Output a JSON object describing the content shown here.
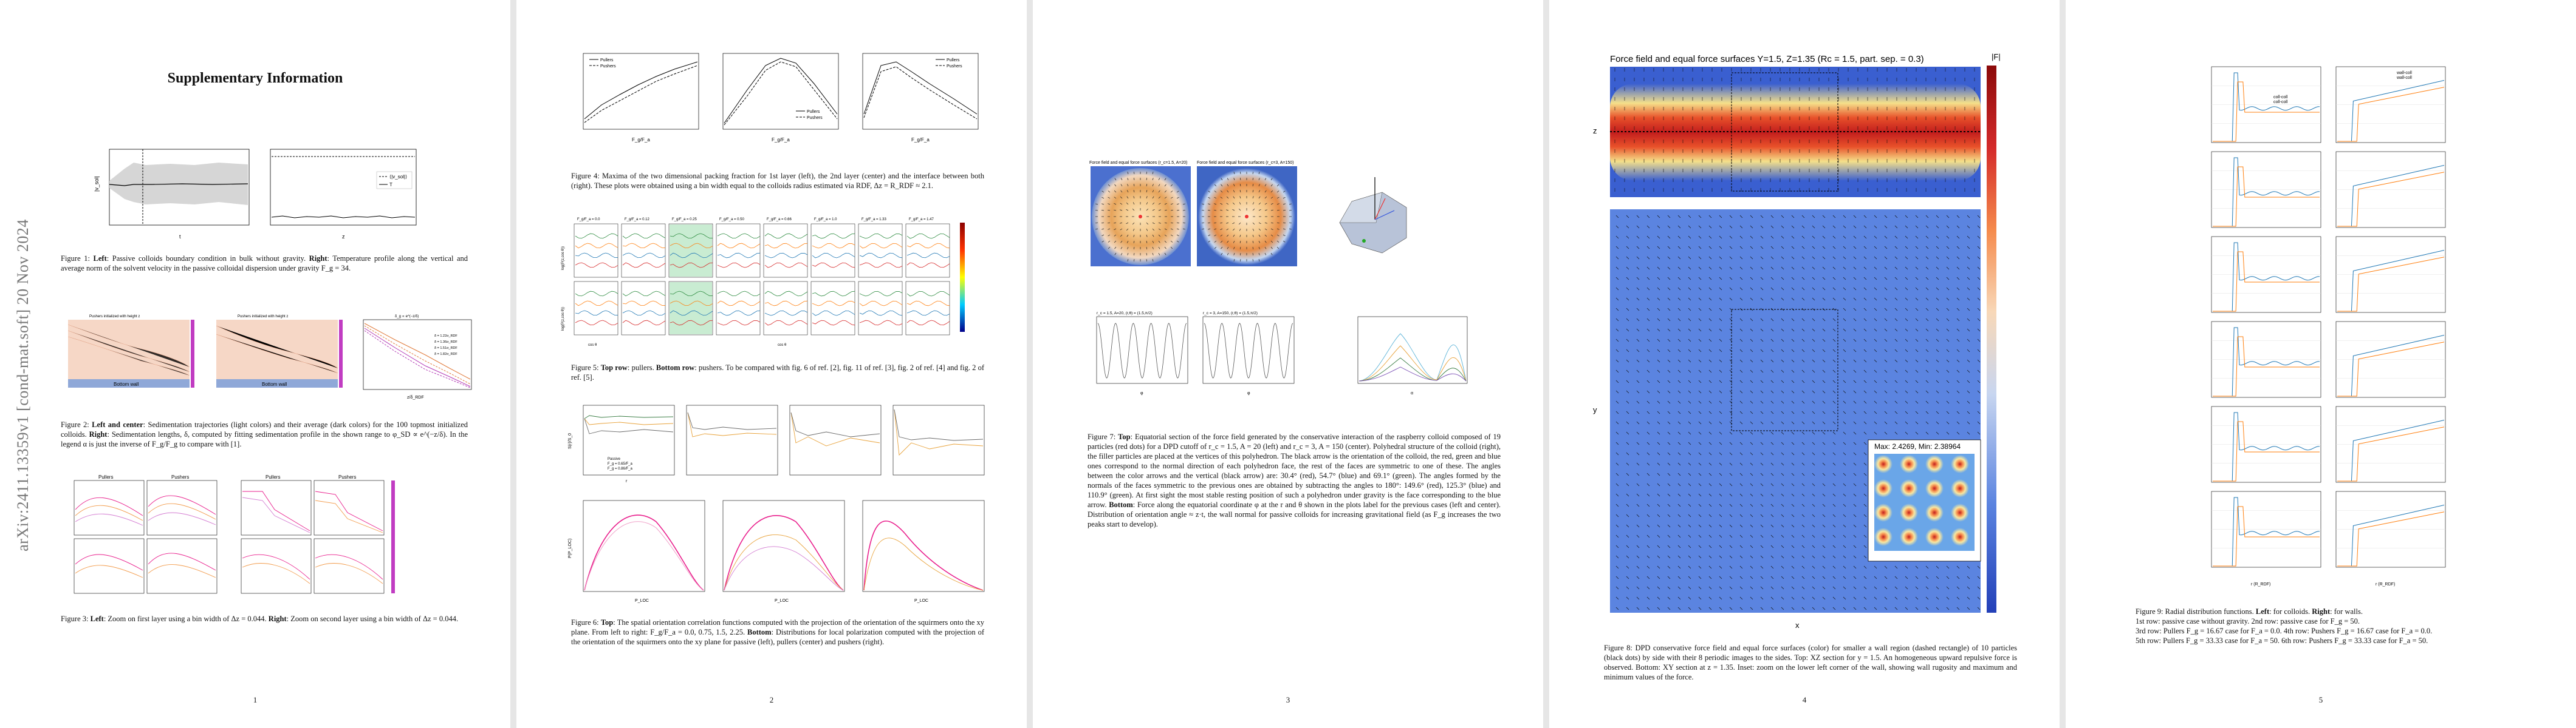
{
  "document": {
    "arxiv_id": "arXiv:2411.13359v1  [cond-mat.soft]  20 Nov 2024",
    "title": "Supplementary Information"
  },
  "pages": [
    {
      "number": "1"
    },
    {
      "number": "2"
    },
    {
      "number": "3"
    },
    {
      "number": "4"
    },
    {
      "number": "5"
    }
  ],
  "captions": {
    "fig1": {
      "label": "Figure 1:",
      "text_a": "Left",
      "text_b": ": Passive colloids boundary condition in bulk without gravity. ",
      "text_c": "Right",
      "text_d": ": Temperature profile along the vertical and average norm of the solvent velocity in the passive colloidal dispersion under gravity F_g = 34."
    },
    "fig2": {
      "label": "Figure 2:",
      "text_a": "Left and center",
      "text_b": ": Sedimentation trajectories (light colors) and their average (dark colors) for the 100 topmost initialized colloids. ",
      "text_c": "Right",
      "text_d": ": Sedimentation lengths, δ, computed by fitting sedimentation profile in the shown range to φ_SD ∝ e^(−z/δ). In the legend α is just the inverse of F_g/F_g to compare with [1]."
    },
    "fig3": {
      "label": "Figure 3:",
      "text_a": "Left",
      "text_b": ": Zoom on first layer using a bin width of Δz = 0.044. ",
      "text_c": "Right",
      "text_d": ": Zoom on second layer using a bin width of Δz = 0.044."
    },
    "fig4": {
      "label": "Figure 4:",
      "text_b": "Maxima of the two dimensional packing fraction for 1st layer (left), the 2nd layer (center) and the interface between both (right). These plots were obtained using a bin width equal to the colloids radius estimated via RDF, Δz = R_RDF ≈ 2.1."
    },
    "fig5": {
      "label": "Figure 5:",
      "text_a": "Top row",
      "text_b": ": pullers. ",
      "text_c": "Bottom row",
      "text_d": ": pushers. To be compared with fig. 6 of ref. [2], fig. 11 of ref. [3], fig. 2 of ref. [4] and fig. 2 of ref. [5]."
    },
    "fig6": {
      "label": "Figure 6:",
      "text_a": "Top",
      "text_b": ": The spatial orientation correlation functions computed with the projection of the orientation of the squirmers onto the xy plane. From left to right: F_g/F_a = 0.0, 0.75, 1.5, 2.25. ",
      "text_c": "Bottom",
      "text_d": ": Distributions for local polarization computed with the projection of the orientation of the squirmers onto the xy plane for passive (left), pullers (center) and pushers (right)."
    },
    "fig7": {
      "label": "Figure 7:",
      "text_a": "Top",
      "text_b": ": Equatorial section of the force field generated by the conservative interaction of the raspberry colloid composed of 19 particles (red dots) for a DPD cutoff of r_c = 1.5, A = 20 (left) and r_c = 3, A = 150 (center). Polyhedral structure of the colloid (right), the filler particles are placed at the vertices of this polyhedron. The black arrow is the orientation of the colloid, the red, green and blue ones correspond to the normal direction of each polyhedron face, the rest of the faces are symmetric to one of these. The angles between the color arrows and the vertical (black arrow) are: 30.4° (red), 54.7° (blue) and 69.1° (green). The angles formed by the normals of the faces symmetric to the previous ones are obtained by subtracting the angles to 180°: 149.6° (red), 125.3° (blue) and 110.9° (green). At first sight the most stable resting position of such a polyhedron under gravity is the face corresponding to the blue arrow. ",
      "text_c": "Bottom",
      "text_d": ": Force along the equatorial coordinate φ at the r and θ shown in the plots label for the previous cases (left and center). Distribution of orientation angle ≈ z·t, the wall normal for passive colloids for increasing gravitational field (as F_g increases the two peaks start to develop)."
    },
    "fig8": {
      "label": "Figure 8:",
      "text_b": "DPD conservative force field and equal force surfaces (color) for smaller a wall region (dashed rectangle) of 10 particles (black dots) by side with their 8 periodic images to the sides. Top: XZ section for y = 1.5. An homogeneous upward repulsive force is observed. Bottom: XY section at z = 1.35. Inset: zoom on the lower left corner of the wall, showing wall rugosity and maximum and minimum values of the force."
    },
    "fig9": {
      "label": "Figure 9:",
      "text_b": "Radial distribution functions. ",
      "text_a": "Left",
      "text_c": ": for colloids. ",
      "text_e": "Right",
      "text_d": ": for walls.",
      "rows": [
        "1st row: passive case without gravity. 2nd row: passive case for F_g = 50.",
        "3rd row: Pullers F_g = 16.67 case for F_a = 0.0. 4th row: Pushers F_g = 16.67 case for F_a = 0.0.",
        "5th row: Pullers F_g = 33.33 case for F_a = 50. 6th row: Pushers F_g = 33.33 case for F_a = 50."
      ]
    }
  },
  "figure_text": {
    "fig1_left": {
      "ylabel": "|v_sol|",
      "xlabel": "t"
    },
    "fig1_right": {
      "legend1": "⟨|v_sol|⟩",
      "legend2": "T",
      "xlabel": "z"
    },
    "fig2_left": {
      "title": "Pushers initialized with height z",
      "xlabel": "Bottom wall"
    },
    "fig2_center": {
      "title": "Pushers initialized with height z",
      "xlabel": "Bottom wall"
    },
    "fig2_right": {
      "title": "δ_g ∝ e^(−z/δ)",
      "xlabel": "z/δ_RDF",
      "leg": [
        "δ = 1.22σ_RDF",
        "δ = 1.36σ_RDF",
        "δ = 1.51σ_RDF",
        "δ = 1.82σ_RDF"
      ]
    },
    "fig3": {
      "titles": [
        "Pullers",
        "Pushers",
        "Pullers",
        "Pushers"
      ]
    },
    "fig4": {
      "leg1": "Pullers",
      "leg2": "Pushers",
      "xlabel": "F_g/F_a",
      "ylabels": [
        "φ_2D (1st layer)",
        "φ_2D (2nd layer)",
        "φ_2D (interface)"
      ]
    },
    "fig5": {
      "titles": [
        "F_g/F_a = 0.0",
        "F_g/F_a = 0.12",
        "F_g/F_a = 0.25",
        "F_g/F_a = 0.50",
        "F_g/F_a = 0.66",
        "F_g/F_a = 1.0",
        "F_g/F_a = 1.33",
        "F_g/F_a = 1.47"
      ],
      "xlabel": "cos θ",
      "ylabel_top": "log(P(z,cos θ))",
      "ylabel_bottom": "log(P(z,cos θ))"
    },
    "fig6": {
      "legend": [
        "Passive",
        "F_g = 0.65/F_a",
        "F_g = 0.86/F_a"
      ],
      "xlabel_top": "r",
      "xlabel_bottom": "P_LOC",
      "ylabel_top": "S(r)/S_0",
      "ylabel_bottom": "P(P_LOC)"
    },
    "fig7": {
      "title_left": "Force field and equal force surfaces (r_c=1.5, A=20)",
      "title_center": "Force field and equal force surfaces (r_c=3, A=150)",
      "bl_title": "r_c = 1.5, A=20, (r,θ) = (1.5,π/2)",
      "bc_title": "r_c = 3, A=150, (r,θ) = (1.5,π/2)",
      "xlabel": "φ",
      "xlabel_r": "α"
    },
    "fig8": {
      "title": "Force field and equal force surfaces Y=1.5, Z=1.35 (Rc = 1.5, part. sep. = 0.3)",
      "colorbar": "|F|",
      "xlabel": "x",
      "ylabel_top": "z",
      "ylabel_bottom": "y",
      "inset_title": "Max: 2.4269, Min: 2.38964"
    },
    "fig9": {
      "leg_left": [
        "coll-coll",
        "coll-coll"
      ],
      "leg_right": [
        "wall-coll",
        "wall-coll"
      ],
      "xlabel": "r (R_RDF)"
    }
  }
}
